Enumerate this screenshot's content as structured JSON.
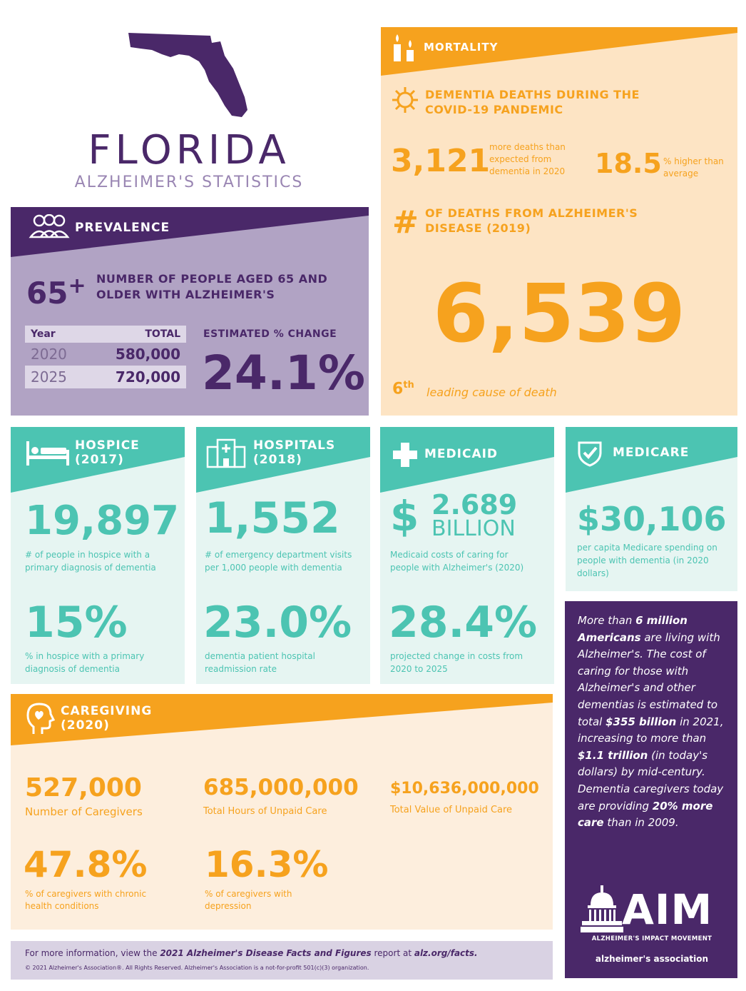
{
  "header": {
    "title": "FLORIDA",
    "subtitle": "ALZHEIMER'S STATISTICS",
    "state_icon": "florida-map-icon",
    "colors": {
      "purple": "#4a2869",
      "orange": "#f6a21e",
      "teal": "#4cc4b2"
    }
  },
  "prevalence": {
    "label": "PREVALENCE",
    "icon": "people-icon",
    "age_mark": "65",
    "age_plus": "+",
    "description": "NUMBER OF PEOPLE AGED 65 AND OLDER WITH ALZHEIMER'S",
    "table": {
      "col_year": "Year",
      "col_total": "TOTAL",
      "rows": [
        {
          "year": "2020",
          "total": "580,000"
        },
        {
          "year": "2025",
          "total": "720,000"
        }
      ]
    },
    "change_label": "ESTIMATED % CHANGE",
    "change_value": "24.1%"
  },
  "mortality": {
    "label": "MORTALITY",
    "icon": "candles-icon",
    "covid_heading": "DEMENTIA DEATHS DURING THE COVID-19 PANDEMIC",
    "covid_icon": "virus-icon",
    "excess_deaths": "3,121",
    "excess_desc": "more deaths than expected from dementia in 2020",
    "pct_higher": "18.5",
    "pct_desc": "% higher than average",
    "alz_heading": "OF DEATHS FROM ALZHEIMER'S DISEASE (2019)",
    "hash": "#",
    "alz_deaths": "6,539",
    "rank": "6",
    "rank_suffix": "th",
    "rank_desc": "leading cause of death"
  },
  "hospice": {
    "label_line1": "HOSPICE",
    "label_line2": "(2017)",
    "icon": "bed-icon",
    "stat1": "19,897",
    "stat1_desc": "# of people in hospice with a primary diagnosis of dementia",
    "stat2": "15%",
    "stat2_desc": "% in hospice with a primary diagnosis of dementia"
  },
  "hospitals": {
    "label_line1": "HOSPITALS",
    "label_line2": "(2018)",
    "icon": "hospital-icon",
    "stat1": "1,552",
    "stat1_desc": "# of emergency department visits per 1,000 people with dementia",
    "stat2": "23.0%",
    "stat2_desc": "dementia patient hospital readmission rate"
  },
  "medicaid": {
    "label": "MEDICAID",
    "icon": "plus-icon",
    "dollar": "$",
    "amount": "2.689",
    "unit": "BILLION",
    "stat1_desc": "Medicaid costs of caring for people with Alzheimer's (2020)",
    "stat2": "28.4%",
    "stat2_desc": "projected change in costs from 2020 to 2025"
  },
  "medicare": {
    "label": "MEDICARE",
    "icon": "check-shield-icon",
    "stat1": "$30,106",
    "stat1_desc": "per capita Medicare spending on people with dementia (in 2020 dollars)"
  },
  "caregiving": {
    "label_line1": "CAREGIVING",
    "label_line2": "(2020)",
    "icon": "head-heart-icon",
    "caregivers": "527,000",
    "caregivers_desc": "Number of Caregivers",
    "hours": "685,000,000",
    "hours_desc": "Total Hours of Unpaid Care",
    "value": "$10,636,000,000",
    "value_desc": "Total Value of Unpaid Care",
    "chronic": "47.8%",
    "chronic_desc": "% of caregivers with chronic health conditions",
    "depression": "16.3%",
    "depression_desc": "% of caregivers with depression"
  },
  "sidebar": {
    "t1": "More than ",
    "b1": "6 million Americans",
    "t2": " are living with Alzheimer's. The cost of caring for those with Alzheimer's and other dementias is estimated to total ",
    "b2": "$355 billion",
    "t3": " in 2021, increasing to more than ",
    "b3": "$1.1 trillion",
    "t4": " (in today's dollars) by mid-century. Dementia caregivers today are providing ",
    "b4": "20% more care",
    "t5": " than in 2009.",
    "logo_text": "AIM",
    "logo_sub": "ALZHEIMER'S IMPACT MOVEMENT",
    "assoc": "alzheimer's association",
    "capitol_icon": "capitol-icon"
  },
  "footer": {
    "line1_a": "For more information, view the ",
    "line1_b": "2021 Alzheimer's Disease Facts and Figures",
    "line1_c": " report at ",
    "line1_d": "alz.org/facts.",
    "line2": "© 2021 Alzheimer's Association®. All Rights Reserved. Alzheimer's Association is a not-for-profit 501(c)(3) organization."
  }
}
